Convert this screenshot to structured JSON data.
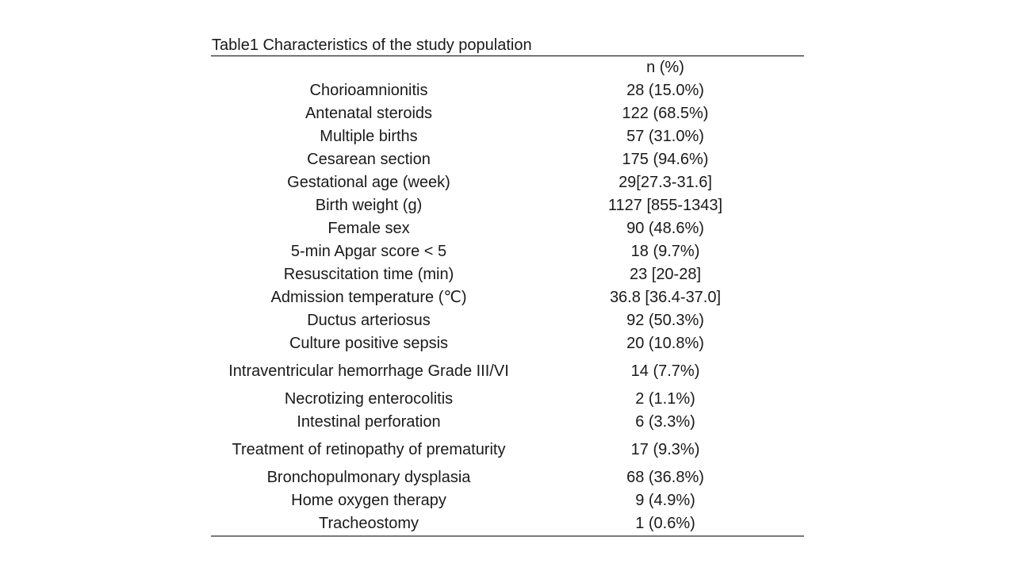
{
  "caption": "Table1 Characteristics of the study population",
  "column_header": "n (%)",
  "rows": [
    {
      "label": "Chorioamnionitis",
      "value": "28 (15.0%)"
    },
    {
      "label": "Antenatal steroids",
      "value": "122 (68.5%)"
    },
    {
      "label": "Multiple births",
      "value": "57 (31.0%)"
    },
    {
      "label": "Cesarean section",
      "value": "175 (94.6%)"
    },
    {
      "label": "Gestational age (week)",
      "value": "29[27.3-31.6]"
    },
    {
      "label": "Birth weight (g)",
      "value": "1127 [855-1343]"
    },
    {
      "label": "Female sex",
      "value": "90 (48.6%)"
    },
    {
      "label": "5-min Apgar score < 5",
      "value": "18 (9.7%)"
    },
    {
      "label": "Resuscitation time (min)",
      "value": "23 [20-28]"
    },
    {
      "label": "Admission temperature (℃)",
      "value": "36.8 [36.4-37.0]"
    },
    {
      "label": "Ductus arteriosus",
      "value": "92 (50.3%)"
    },
    {
      "label": "Culture positive sepsis",
      "value": "20 (10.8%)"
    },
    {
      "label": "Intraventricular hemorrhage Grade III/VI",
      "value": "14 (7.7%)"
    },
    {
      "label": "Necrotizing enterocolitis",
      "value": "2 (1.1%)"
    },
    {
      "label": "Intestinal perforation",
      "value": "6 (3.3%)"
    },
    {
      "label": "Treatment of retinopathy of prematurity",
      "value": "17 (9.3%)"
    },
    {
      "label": "Bronchopulmonary dysplasia",
      "value": "68 (36.8%)"
    },
    {
      "label": "Home oxygen therapy",
      "value": "9 (4.9%)"
    },
    {
      "label": "Tracheostomy",
      "value": "1 (0.6%)"
    }
  ]
}
